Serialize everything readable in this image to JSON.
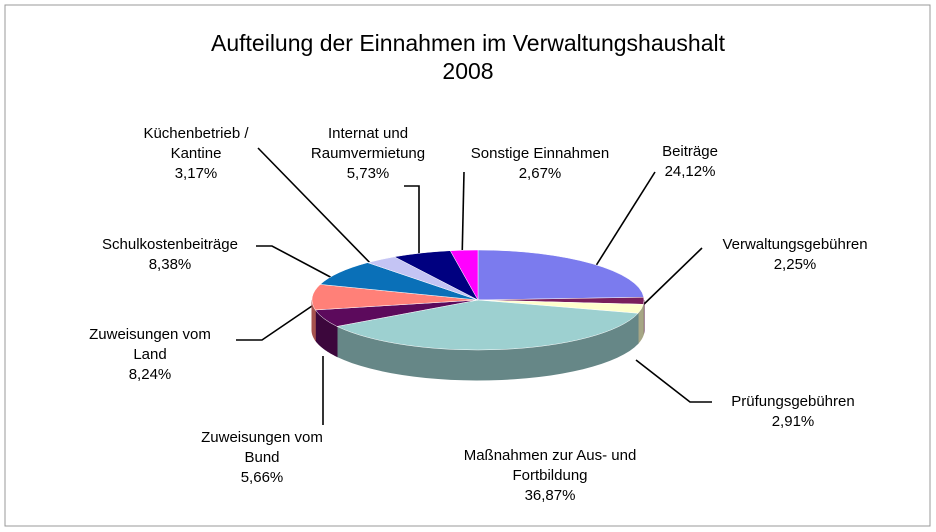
{
  "chart_data": {
    "type": "pie3d",
    "title": "Aufteilung der Einnahmen im Verwaltungshaushalt",
    "subtitle": "2008",
    "categories": [
      "Beiträge",
      "Verwaltungsgebühren",
      "Prüfungsgebühren",
      "Maßnahmen zur Aus- und Fortbildung",
      "Zuweisungen vom Bund",
      "Zuweisungen vom Land",
      "Schulkostenbeiträge",
      "Küchenbetrieb / Kantine",
      "Internat und Raumvermietung",
      "Sonstige Einnahmen"
    ],
    "values": [
      24.12,
      2.25,
      2.91,
      36.87,
      5.66,
      8.24,
      8.38,
      3.17,
      5.73,
      2.67
    ],
    "value_labels": [
      "24,12%",
      "2,25%",
      "2,91%",
      "36,87%",
      "5,66%",
      "8,24%",
      "8,38%",
      "3,17%",
      "5,73%",
      "2,67%"
    ],
    "colors": [
      "#7b7bee",
      "#7a1f5c",
      "#ffffcc",
      "#9dd0d0",
      "#5c0a5c",
      "#ff8078",
      "#0a70b8",
      "#c4c4f4",
      "#000080",
      "#ff00ff"
    ]
  }
}
